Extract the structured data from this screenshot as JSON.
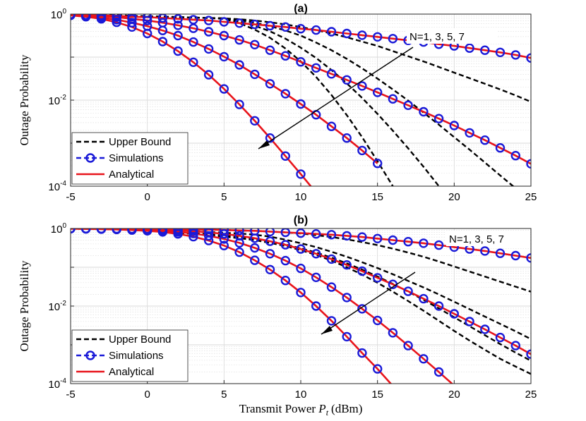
{
  "colors": {
    "analytical": "#e8141b",
    "simulations": "#1a1ad8",
    "upper_bound": "#000000",
    "grid": "#d9d9d9",
    "axis": "#262626"
  },
  "chart_data": [
    {
      "type": "line",
      "title": "(a)",
      "xlabel": "Transmit Power",
      "xlabel_symbol": "P",
      "xlabel_sub": "t",
      "xlabel_unit": "(dBm)",
      "ylabel": "Outage Probability",
      "xlim": [
        -5,
        25
      ],
      "ylim": [
        0.0001,
        1
      ],
      "yscale": "log",
      "xticks": [
        "-5",
        "0",
        "5",
        "10",
        "15",
        "20",
        "25"
      ],
      "yticks": [
        {
          "base": "10",
          "exp": "0"
        },
        {
          "base": "10",
          "exp": "-2"
        },
        {
          "base": "10",
          "exp": "-4"
        }
      ],
      "annotation": "N=1, 3, 5, 7",
      "legend": {
        "position": "bottom-left",
        "entries": [
          "Upper Bound",
          "Simulations",
          "Analytical"
        ]
      },
      "x": [
        -5,
        -4,
        -3,
        -2,
        -1,
        0,
        1,
        2,
        3,
        4,
        5,
        6,
        7,
        8,
        9,
        10,
        11,
        12,
        13,
        14,
        15,
        16,
        17,
        18,
        19,
        20,
        21,
        22,
        23,
        24,
        25
      ],
      "analytical": [
        {
          "name": "N=1",
          "log10": [
            -0.005,
            -0.02,
            -0.03,
            -0.04,
            -0.06,
            -0.07,
            -0.09,
            -0.11,
            -0.13,
            -0.15,
            -0.18,
            -0.21,
            -0.24,
            -0.27,
            -0.3,
            -0.34,
            -0.37,
            -0.41,
            -0.45,
            -0.49,
            -0.53,
            -0.57,
            -0.61,
            -0.65,
            -0.7,
            -0.74,
            -0.79,
            -0.84,
            -0.89,
            -0.95,
            -1.02
          ]
        },
        {
          "name": "N=3",
          "log10": [
            -0.01,
            -0.03,
            -0.05,
            -0.07,
            -0.11,
            -0.15,
            -0.2,
            -0.26,
            -0.33,
            -0.41,
            -0.5,
            -0.6,
            -0.71,
            -0.84,
            -0.97,
            -1.11,
            -1.25,
            -1.39,
            -1.53,
            -1.67,
            -1.82,
            -1.97,
            -2.12,
            -2.27,
            -2.43,
            -2.59,
            -2.76,
            -2.93,
            -3.11,
            -3.29,
            -3.48
          ]
        },
        {
          "name": "N=5",
          "log10": [
            -0.02,
            -0.04,
            -0.08,
            -0.13,
            -0.2,
            -0.28,
            -0.38,
            -0.5,
            -0.65,
            -0.81,
            -0.99,
            -1.18,
            -1.4,
            -1.62,
            -1.85,
            -2.09,
            -2.34,
            -2.61,
            -2.88,
            -3.17,
            -3.47,
            null,
            null,
            null,
            null,
            null,
            null,
            null,
            null,
            null,
            null
          ]
        },
        {
          "name": "N=7",
          "log10": [
            -0.03,
            -0.06,
            -0.11,
            -0.19,
            -0.3,
            -0.45,
            -0.64,
            -0.86,
            -1.12,
            -1.41,
            -1.74,
            -2.1,
            -2.48,
            -2.88,
            -3.3,
            -3.72,
            -4.15,
            null,
            null,
            null,
            null,
            null,
            null,
            null,
            null,
            null,
            null,
            null,
            null,
            null,
            null
          ]
        }
      ],
      "upper_bound": [
        {
          "name": "N=1",
          "log10": [
            -0.005,
            -0.01,
            -0.02,
            -0.03,
            -0.04,
            -0.05,
            -0.06,
            -0.07,
            -0.08,
            -0.09,
            -0.1,
            -0.12,
            -0.15,
            -0.19,
            -0.24,
            -0.3,
            -0.37,
            -0.45,
            -0.54,
            -0.64,
            -0.74,
            -0.86,
            -0.98,
            -1.1,
            -1.23,
            -1.36,
            -1.49,
            -1.62,
            -1.75,
            -1.89,
            -2.04
          ]
        },
        {
          "name": "N=3",
          "log10": [
            -0.005,
            -0.01,
            -0.02,
            -0.03,
            -0.04,
            -0.05,
            -0.06,
            -0.07,
            -0.08,
            -0.09,
            -0.1,
            -0.14,
            -0.2,
            -0.28,
            -0.38,
            -0.5,
            -0.66,
            -0.84,
            -1.04,
            -1.26,
            -1.5,
            -1.75,
            -2.01,
            -2.29,
            -2.57,
            -2.86,
            -3.15,
            -3.45,
            -3.75,
            -4.05,
            -4.35
          ]
        },
        {
          "name": "N=5",
          "log10": [
            -0.005,
            -0.01,
            -0.02,
            -0.03,
            -0.04,
            -0.05,
            -0.06,
            -0.07,
            -0.08,
            -0.09,
            -0.1,
            -0.17,
            -0.27,
            -0.4,
            -0.57,
            -0.78,
            -1.02,
            -1.3,
            -1.61,
            -1.95,
            -2.32,
            -2.71,
            -3.12,
            -3.55,
            -4.0,
            -4.45,
            null,
            null,
            null,
            null,
            null
          ]
        },
        {
          "name": "N=7",
          "log10": [
            -0.005,
            -0.01,
            -0.02,
            -0.03,
            -0.04,
            -0.05,
            -0.06,
            -0.07,
            -0.08,
            -0.09,
            -0.11,
            -0.21,
            -0.36,
            -0.55,
            -0.8,
            -1.1,
            -1.46,
            -1.88,
            -2.35,
            -2.86,
            -3.42,
            -4.0,
            null,
            null,
            null,
            null,
            null,
            null,
            null,
            null,
            null
          ]
        }
      ]
    },
    {
      "type": "line",
      "title": "(b)",
      "xlabel": "Transmit Power",
      "xlabel_symbol": "P",
      "xlabel_sub": "t",
      "xlabel_unit": "(dBm)",
      "ylabel": "Outage Probability",
      "xlim": [
        -5,
        25
      ],
      "ylim": [
        0.0001,
        1
      ],
      "yscale": "log",
      "xticks": [
        "-5",
        "0",
        "5",
        "10",
        "15",
        "20",
        "25"
      ],
      "yticks": [
        {
          "base": "10",
          "exp": "0"
        },
        {
          "base": "10",
          "exp": "-2"
        },
        {
          "base": "10",
          "exp": "-4"
        }
      ],
      "annotation": "N=1, 3, 5, 7",
      "legend": {
        "position": "bottom-left",
        "entries": [
          "Upper Bound",
          "Simulations",
          "Analytical"
        ]
      },
      "x": [
        -5,
        -4,
        -3,
        -2,
        -1,
        0,
        1,
        2,
        3,
        4,
        5,
        6,
        7,
        8,
        9,
        10,
        11,
        12,
        13,
        14,
        15,
        16,
        17,
        18,
        19,
        20,
        21,
        22,
        23,
        24,
        25
      ],
      "analytical": [
        {
          "name": "N=1",
          "log10": [
            -0.002,
            -0.004,
            -0.006,
            -0.008,
            -0.01,
            -0.012,
            -0.015,
            -0.02,
            -0.025,
            -0.03,
            -0.04,
            -0.05,
            -0.06,
            -0.08,
            -0.1,
            -0.12,
            -0.14,
            -0.16,
            -0.19,
            -0.22,
            -0.26,
            -0.3,
            -0.34,
            -0.38,
            -0.43,
            -0.48,
            -0.53,
            -0.58,
            -0.64,
            -0.7,
            -0.76
          ]
        },
        {
          "name": "N=3",
          "log10": [
            -0.003,
            -0.006,
            -0.01,
            -0.014,
            -0.02,
            -0.03,
            -0.04,
            -0.05,
            -0.07,
            -0.1,
            -0.14,
            -0.19,
            -0.25,
            -0.33,
            -0.42,
            -0.53,
            -0.65,
            -0.79,
            -0.94,
            -1.1,
            -1.27,
            -1.44,
            -1.62,
            -1.81,
            -2.0,
            -2.2,
            -2.4,
            -2.6,
            -2.81,
            -3.02,
            -3.24
          ]
        },
        {
          "name": "N=5",
          "log10": [
            -0.004,
            -0.008,
            -0.013,
            -0.02,
            -0.03,
            -0.045,
            -0.065,
            -0.09,
            -0.13,
            -0.19,
            -0.27,
            -0.37,
            -0.5,
            -0.65,
            -0.83,
            -1.03,
            -1.26,
            -1.51,
            -1.78,
            -2.07,
            -2.37,
            -2.69,
            -3.02,
            -3.36,
            -3.7,
            -4.05,
            -4.4,
            null,
            null,
            null,
            null
          ]
        },
        {
          "name": "N=7",
          "log10": [
            -0.005,
            -0.01,
            -0.016,
            -0.025,
            -0.04,
            -0.06,
            -0.09,
            -0.14,
            -0.21,
            -0.31,
            -0.44,
            -0.61,
            -0.82,
            -1.06,
            -1.34,
            -1.65,
            -2.0,
            -2.38,
            -2.79,
            -3.21,
            -3.62,
            -4.06,
            null,
            null,
            null,
            null,
            null,
            null,
            null,
            null,
            null
          ]
        }
      ],
      "upper_bound": [
        {
          "name": "N=1",
          "log10": [
            -0.002,
            -0.004,
            -0.006,
            -0.008,
            -0.01,
            -0.012,
            -0.015,
            -0.02,
            -0.025,
            -0.03,
            -0.04,
            -0.05,
            -0.06,
            -0.08,
            -0.1,
            -0.13,
            -0.17,
            -0.22,
            -0.28,
            -0.35,
            -0.43,
            -0.52,
            -0.62,
            -0.73,
            -0.85,
            -0.98,
            -1.11,
            -1.24,
            -1.37,
            -1.5,
            -1.63
          ]
        },
        {
          "name": "N=3",
          "log10": [
            -0.003,
            -0.006,
            -0.01,
            -0.014,
            -0.02,
            -0.03,
            -0.04,
            -0.05,
            -0.07,
            -0.09,
            -0.11,
            -0.13,
            -0.16,
            -0.21,
            -0.29,
            -0.38,
            -0.48,
            -0.6,
            -0.73,
            -0.87,
            -1.02,
            -1.18,
            -1.35,
            -1.52,
            -1.7,
            -1.89,
            -2.08,
            -2.27,
            -2.46,
            -2.65,
            -2.85
          ]
        },
        {
          "name": "N=5",
          "log10": [
            -0.004,
            -0.008,
            -0.013,
            -0.02,
            -0.03,
            -0.045,
            -0.065,
            -0.09,
            -0.12,
            -0.15,
            -0.18,
            -0.22,
            -0.27,
            -0.33,
            -0.41,
            -0.51,
            -0.62,
            -0.75,
            -0.9,
            -1.06,
            -1.24,
            -1.43,
            -1.63,
            -1.84,
            -2.06,
            -2.29,
            -2.52,
            -2.75,
            -2.98,
            -3.2,
            -3.41
          ]
        },
        {
          "name": "N=7",
          "log10": [
            -0.005,
            -0.01,
            -0.016,
            -0.025,
            -0.04,
            -0.06,
            -0.085,
            -0.11,
            -0.14,
            -0.17,
            -0.21,
            -0.25,
            -0.3,
            -0.37,
            -0.45,
            -0.56,
            -0.68,
            -0.83,
            -1.0,
            -1.19,
            -1.4,
            -1.63,
            -1.87,
            -2.12,
            -2.38,
            -2.64,
            -2.89,
            -3.13,
            -3.36,
            -3.56,
            -3.75
          ]
        }
      ]
    }
  ]
}
